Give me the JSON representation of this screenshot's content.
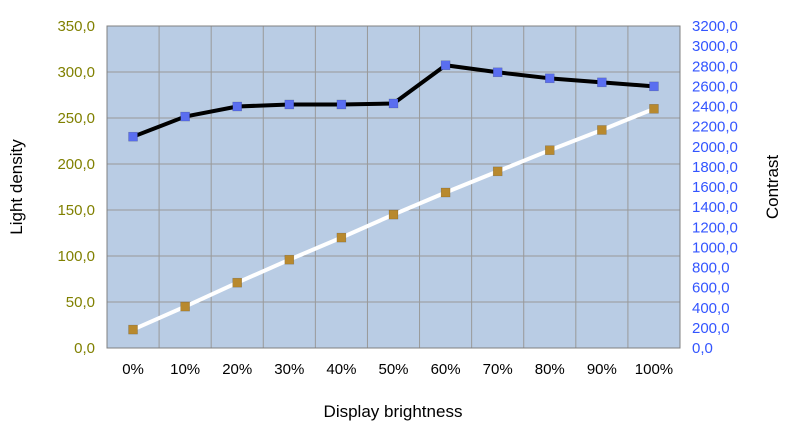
{
  "chart_data": {
    "type": "line",
    "xlabel": "Display brightness",
    "categories": [
      "0%",
      "10%",
      "20%",
      "30%",
      "40%",
      "50%",
      "60%",
      "70%",
      "80%",
      "90%",
      "100%"
    ],
    "y_left": {
      "label": "Light density",
      "ylim": [
        0,
        350
      ],
      "ticks": [
        "0,0",
        "50,0",
        "100,0",
        "150,0",
        "200,0",
        "250,0",
        "300,0",
        "350,0"
      ],
      "tick_color": "#808000"
    },
    "y_right": {
      "label": "Contrast",
      "ylim": [
        0,
        3200
      ],
      "ticks": [
        "0,0",
        "200,0",
        "400,0",
        "600,0",
        "800,0",
        "1000,0",
        "1200,0",
        "1400,0",
        "1600,0",
        "1800,0",
        "2000,0",
        "2200,0",
        "2400,0",
        "2600,0",
        "2800,0",
        "3000,0",
        "3200,0"
      ],
      "tick_color": "#3355ff"
    },
    "series": [
      {
        "axis": "right",
        "values": [
          2100,
          2300,
          2400,
          2420,
          2420,
          2430,
          2810,
          2740,
          2680,
          2640,
          2600
        ],
        "line_color": "#000000",
        "marker_color": "#5a6ef0"
      },
      {
        "axis": "left",
        "values": [
          20,
          45,
          71,
          96,
          120,
          145,
          169,
          192,
          215,
          237,
          260
        ],
        "line_color": "#ffffff",
        "marker_color": "#b8892e"
      }
    ],
    "grid": true,
    "plot_background": "#b9cce4",
    "grid_color": "#999999"
  }
}
